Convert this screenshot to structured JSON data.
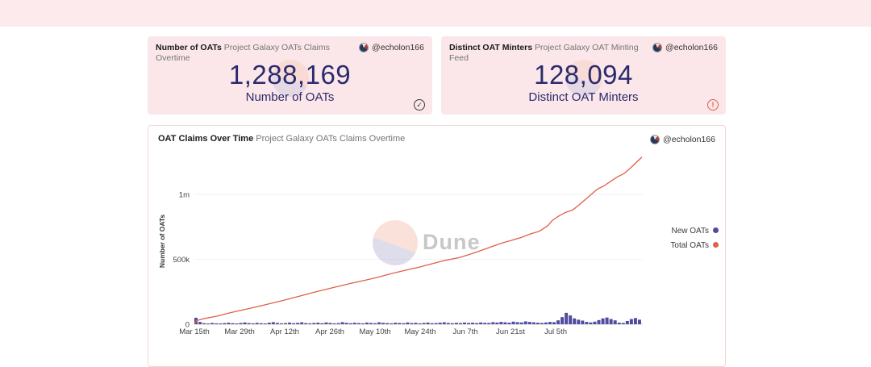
{
  "author": {
    "handle": "@echolon166"
  },
  "icons": {
    "check": "✓",
    "alert": "!",
    "avatar": "dune-author-avatar"
  },
  "stat_cards": [
    {
      "title": "Number of OATs",
      "subtitle": "Project Galaxy OATs Claims Overtime",
      "value": "1,288,169",
      "label": "Number of OATs",
      "status": "check"
    },
    {
      "title": "Distinct OAT Minters",
      "subtitle": "Project Galaxy OAT Minting Feed",
      "value": "128,094",
      "label": "Distinct OAT Minters",
      "status": "alert"
    }
  ],
  "chart_card": {
    "title": "OAT Claims Over Time",
    "subtitle": "Project Galaxy OATs Claims Overtime"
  },
  "chart_data": {
    "type": "line+bar",
    "title": "OAT Claims Over Time",
    "xlabel": "",
    "ylabel": "Number of OATs",
    "watermark": "Dune",
    "grid": "horizontal-faint",
    "legend_position": "right",
    "x_ticks": [
      "Mar 15th",
      "Mar 29th",
      "Apr 12th",
      "Apr 26th",
      "May 10th",
      "May 24th",
      "Jun 7th",
      "Jun 21st",
      "Jul 5th"
    ],
    "y_ticks": [
      {
        "v": 0,
        "label": "0"
      },
      {
        "v": 500,
        "label": "500k"
      },
      {
        "v": 1000,
        "label": "1m"
      }
    ],
    "ylim_k": [
      0,
      1340
    ],
    "legend": [
      {
        "name": "New OATs",
        "color": "#504c9e",
        "type": "bar"
      },
      {
        "name": "Total OATs",
        "color": "#e0604a",
        "type": "line"
      }
    ],
    "total_oats_line_frac_k": [
      [
        0,
        5
      ],
      [
        0.005,
        28
      ],
      [
        0.02,
        42
      ],
      [
        0.05,
        62
      ],
      [
        0.08,
        88
      ],
      [
        0.11,
        112
      ],
      [
        0.14,
        135
      ],
      [
        0.17,
        160
      ],
      [
        0.2,
        185
      ],
      [
        0.23,
        212
      ],
      [
        0.26,
        240
      ],
      [
        0.29,
        265
      ],
      [
        0.32,
        290
      ],
      [
        0.35,
        315
      ],
      [
        0.38,
        338
      ],
      [
        0.41,
        362
      ],
      [
        0.44,
        390
      ],
      [
        0.47,
        415
      ],
      [
        0.5,
        438
      ],
      [
        0.53,
        465
      ],
      [
        0.56,
        492
      ],
      [
        0.59,
        512
      ],
      [
        0.61,
        532
      ],
      [
        0.63,
        555
      ],
      [
        0.65,
        580
      ],
      [
        0.67,
        605
      ],
      [
        0.69,
        628
      ],
      [
        0.71,
        648
      ],
      [
        0.73,
        668
      ],
      [
        0.75,
        695
      ],
      [
        0.77,
        715
      ],
      [
        0.79,
        760
      ],
      [
        0.8,
        800
      ],
      [
        0.815,
        835
      ],
      [
        0.83,
        862
      ],
      [
        0.845,
        880
      ],
      [
        0.86,
        920
      ],
      [
        0.875,
        965
      ],
      [
        0.89,
        1010
      ],
      [
        0.9,
        1040
      ],
      [
        0.915,
        1065
      ],
      [
        0.93,
        1100
      ],
      [
        0.945,
        1135
      ],
      [
        0.96,
        1160
      ],
      [
        0.975,
        1205
      ],
      [
        0.99,
        1255
      ],
      [
        1,
        1288
      ]
    ],
    "new_oats_bars_k": [
      50,
      18,
      8,
      6,
      10,
      7,
      5,
      9,
      12,
      8,
      6,
      10,
      14,
      9,
      7,
      11,
      8,
      6,
      12,
      16,
      10,
      7,
      9,
      13,
      8,
      11,
      15,
      9,
      7,
      10,
      12,
      8,
      14,
      10,
      7,
      9,
      16,
      11,
      8,
      12,
      9,
      7,
      13,
      10,
      8,
      15,
      11,
      9,
      7,
      12,
      10,
      8,
      14,
      9,
      11,
      7,
      10,
      13,
      8,
      9,
      12,
      15,
      10,
      8,
      11,
      9,
      13,
      10,
      12,
      9,
      14,
      11,
      10,
      16,
      13,
      18,
      15,
      12,
      20,
      16,
      14,
      22,
      18,
      15,
      12,
      10,
      14,
      18,
      16,
      30,
      55,
      88,
      68,
      45,
      35,
      28,
      18,
      14,
      20,
      32,
      45,
      52,
      40,
      30,
      12,
      10,
      25,
      40,
      48,
      35
    ]
  },
  "colors": {
    "topbar_pink": "#fdeaec",
    "card_pink": "#fbe7e9",
    "card_border": "#f0d5d7",
    "number_navy": "#2b2a6e",
    "line_orange": "#e0604a",
    "bar_purple": "#504c9e"
  }
}
